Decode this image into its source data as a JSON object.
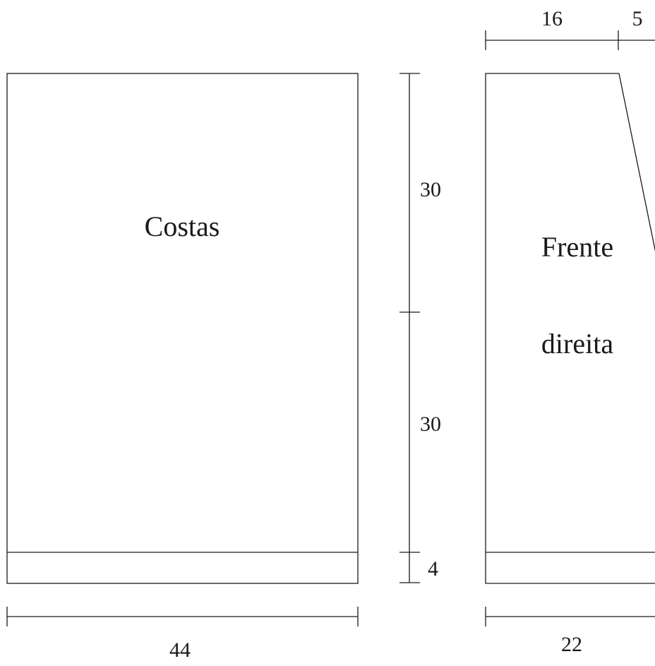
{
  "pieces": {
    "back": {
      "label": "Costas"
    },
    "right_front": {
      "label_line1": "Frente",
      "label_line2": "direita"
    }
  },
  "dimensions": {
    "back_width": "44",
    "body_upper": "30",
    "body_lower": "30",
    "ribbing": "4",
    "front_top_width": "16",
    "front_top_slope": "5",
    "front_width": "22"
  },
  "colors": {
    "line": "#1a1a1a",
    "background": "#ffffff"
  }
}
